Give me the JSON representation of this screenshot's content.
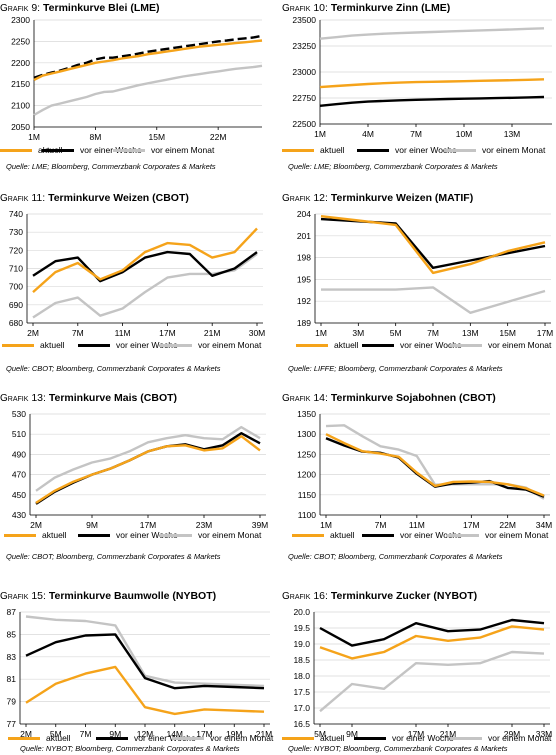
{
  "colors": {
    "aktuell": "#F5A31A",
    "vor_einer_woche": "#000000",
    "vor_einem_monat": "#C4C4C4",
    "grid": "#D9D9D9"
  },
  "legend_labels": [
    "aktuell",
    "vor einer Woche",
    "vor einem Monat"
  ],
  "chart_data": [
    {
      "type": "line",
      "label": "Grafik",
      "number": "9:",
      "title": "Terminkurve Blei (LME)",
      "ylim": [
        2050,
        2300
      ],
      "yticks": [
        "2300",
        "2250",
        "2200",
        "2150",
        "2100",
        "2050"
      ],
      "xticks": [
        "1M",
        "8M",
        "15M",
        "22M"
      ],
      "x": [
        1,
        2,
        3,
        4,
        5,
        6,
        7,
        8,
        9,
        10,
        11,
        12,
        13,
        14,
        15,
        16,
        17,
        18,
        19,
        20,
        21,
        22,
        23,
        24,
        25,
        26,
        27
      ],
      "xlim": [
        1,
        27
      ],
      "tick_x": [
        1,
        8,
        15,
        22
      ],
      "series": [
        {
          "name": "aktuell",
          "key": "aktuell",
          "values": [
            2160,
            2170,
            2175,
            2180,
            2185,
            2190,
            2195,
            2200,
            2203,
            2206,
            2210,
            2213,
            2216,
            2220,
            2223,
            2226,
            2229,
            2232,
            2235,
            2238,
            2240,
            2242,
            2244,
            2246,
            2248,
            2250,
            2252
          ]
        },
        {
          "name": "vor einer Woche",
          "key": "vor_einer_woche",
          "dashed": true,
          "values": [
            2165,
            2172,
            2177,
            2182,
            2188,
            2195,
            2200,
            2208,
            2212,
            2212,
            2215,
            2218,
            2222,
            2226,
            2229,
            2232,
            2235,
            2238,
            2241,
            2244,
            2247,
            2250,
            2252,
            2255,
            2257,
            2259,
            2263
          ]
        },
        {
          "name": "vor einem Monat",
          "key": "vor_einem_monat",
          "values": [
            2078,
            2090,
            2100,
            2105,
            2110,
            2115,
            2120,
            2127,
            2132,
            2133,
            2138,
            2143,
            2148,
            2152,
            2156,
            2160,
            2164,
            2168,
            2171,
            2174,
            2177,
            2180,
            2183,
            2186,
            2188,
            2190,
            2193
          ]
        }
      ],
      "source": "Quelle: LME; Bloomberg, Commerzbank Corporates & Markets"
    },
    {
      "type": "line",
      "label": "Grafik",
      "number": "10:",
      "title": "Terminkurve Zinn (LME)",
      "ylim": [
        22500,
        23500
      ],
      "yticks": [
        "23500",
        "23250",
        "23000",
        "22750",
        "22500"
      ],
      "xticks": [
        "1M",
        "4M",
        "7M",
        "10M",
        "13M"
      ],
      "x": [
        1,
        2,
        3,
        4,
        5,
        6,
        7,
        8,
        9,
        10,
        11,
        12,
        13,
        14,
        15
      ],
      "xlim": [
        1,
        15.5
      ],
      "tick_x": [
        1,
        4,
        7,
        10,
        13
      ],
      "series": [
        {
          "name": "aktuell",
          "key": "aktuell",
          "values": [
            22855,
            22865,
            22875,
            22885,
            22892,
            22898,
            22903,
            22906,
            22909,
            22912,
            22915,
            22918,
            22921,
            22925,
            22930
          ]
        },
        {
          "name": "vor einer Woche",
          "key": "vor_einer_woche",
          "values": [
            22675,
            22690,
            22705,
            22715,
            22722,
            22728,
            22733,
            22737,
            22740,
            22743,
            22746,
            22749,
            22752,
            22756,
            22760
          ]
        },
        {
          "name": "vor einem Monat",
          "key": "vor_einem_monat",
          "values": [
            23320,
            23335,
            23350,
            23360,
            23368,
            23374,
            23380,
            23385,
            23390,
            23395,
            23400,
            23405,
            23410,
            23415,
            23420
          ]
        }
      ],
      "source": "Quelle: LME; Bloomberg, Commerzbank Corporates & Markets"
    },
    {
      "type": "line",
      "label": "Grafik",
      "number": "11:",
      "title": "Terminkurve Weizen (CBOT)",
      "ylim": [
        680,
        740
      ],
      "yticks": [
        "740",
        "730",
        "720",
        "710",
        "700",
        "690",
        "680"
      ],
      "xticks": [
        "2M",
        "7M",
        "11M",
        "17M",
        "21M",
        "30M"
      ],
      "x": [
        2,
        4,
        7,
        9,
        11,
        13,
        17,
        19,
        21,
        23,
        30
      ],
      "xcat": true,
      "tick_idx": [
        0,
        2,
        4,
        6,
        8,
        10
      ],
      "series": [
        {
          "name": "aktuell",
          "key": "aktuell",
          "values": [
            697,
            708,
            713,
            704,
            709,
            719,
            724,
            723,
            716,
            719,
            732
          ]
        },
        {
          "name": "vor einer Woche",
          "key": "vor_einer_woche",
          "values": [
            706,
            714,
            716,
            703,
            708,
            716,
            719,
            718,
            706,
            710,
            719
          ]
        },
        {
          "name": "vor einem Monat",
          "key": "vor_einem_monat",
          "values": [
            683,
            691,
            694,
            684,
            688,
            697,
            705,
            707,
            707,
            709,
            718
          ]
        }
      ],
      "source": "Quelle: CBOT; Bloomberg, Commerzbank Corporates & Markets"
    },
    {
      "type": "line",
      "label": "Grafik",
      "number": "12:",
      "title": "Terminkurve Weizen (MATIF)",
      "ylim": [
        189,
        204
      ],
      "yticks": [
        "204",
        "201",
        "198",
        "195",
        "192",
        "189"
      ],
      "xticks": [
        "1M",
        "3M",
        "5M",
        "7M",
        "13M",
        "15M",
        "17M"
      ],
      "x": [
        1,
        3,
        5,
        7,
        13,
        15,
        17
      ],
      "xcat": true,
      "tick_idx": [
        0,
        1,
        2,
        3,
        4,
        5,
        6
      ],
      "series": [
        {
          "name": "aktuell",
          "key": "aktuell",
          "values": [
            203.7,
            203.1,
            202.5,
            195.9,
            197.1,
            198.9,
            200.1
          ]
        },
        {
          "name": "vor einer Woche",
          "key": "vor_einer_woche",
          "values": [
            203.3,
            203.0,
            202.7,
            196.6,
            197.6,
            198.6,
            199.6
          ]
        },
        {
          "name": "vor einem Monat",
          "key": "vor_einem_monat",
          "values": [
            193.6,
            193.6,
            193.6,
            193.9,
            190.4,
            191.9,
            193.4
          ]
        }
      ],
      "source": "Quelle: LIFFE; Bloomberg, Commerzbank Corporates & Markets"
    },
    {
      "type": "line",
      "label": "Grafik",
      "number": "13:",
      "title": "Terminkurve Mais (CBOT)",
      "ylim": [
        430,
        530
      ],
      "yticks": [
        "530",
        "510",
        "490",
        "470",
        "450",
        "430"
      ],
      "xticks": [
        "2M",
        "9M",
        "17M",
        "23M",
        "39M"
      ],
      "x": [
        2,
        4,
        6,
        9,
        11,
        14,
        17,
        19,
        21,
        23,
        25,
        27,
        39
      ],
      "xcat": true,
      "tick_idx": [
        0,
        3,
        6,
        9,
        12
      ],
      "series": [
        {
          "name": "aktuell",
          "key": "aktuell",
          "values": [
            442,
            454,
            463,
            470,
            476,
            484,
            493,
            498,
            499,
            494,
            496,
            508,
            494
          ]
        },
        {
          "name": "vor einer Woche",
          "key": "vor_einer_woche",
          "values": [
            441,
            453,
            462,
            470,
            476,
            484,
            493,
            498,
            500,
            495,
            499,
            511,
            501
          ]
        },
        {
          "name": "vor einem Monat",
          "key": "vor_einem_monat",
          "values": [
            454,
            467,
            475,
            482,
            486,
            493,
            502,
            506,
            509,
            506,
            505,
            517,
            506
          ]
        }
      ],
      "source": "Quelle: CBOT; Bloomberg, Commerzbank Corporates & Markets"
    },
    {
      "type": "line",
      "label": "Grafik",
      "number": "14:",
      "title": "Terminkurve Sojabohnen (CBOT)",
      "ylim": [
        1100,
        1350
      ],
      "yticks": [
        "1350",
        "1300",
        "1250",
        "1200",
        "1150",
        "1100"
      ],
      "xticks": [
        "1M",
        "7M",
        "11M",
        "17M",
        "22M",
        "34M"
      ],
      "x": [
        1,
        3,
        5,
        7,
        9,
        11,
        13,
        15,
        17,
        19,
        22,
        25,
        34
      ],
      "xcat": true,
      "tick_idx": [
        0,
        3,
        5,
        8,
        10,
        12
      ],
      "series": [
        {
          "name": "aktuell",
          "key": "aktuell",
          "values": [
            1300,
            1278,
            1258,
            1252,
            1244,
            1205,
            1172,
            1182,
            1183,
            1182,
            1176,
            1166,
            1148
          ]
        },
        {
          "name": "vor einer Woche",
          "key": "vor_einer_woche",
          "values": [
            1290,
            1272,
            1257,
            1254,
            1242,
            1202,
            1170,
            1178,
            1180,
            1184,
            1167,
            1163,
            1145
          ]
        },
        {
          "name": "vor einem Monat",
          "key": "vor_einem_monat",
          "values": [
            1320,
            1322,
            1295,
            1270,
            1262,
            1246,
            1175,
            1176,
            1176,
            1176,
            1176,
            1168,
            1140
          ]
        }
      ],
      "source": "Quelle: CBOT; Bloomberg, Commerzbank Corporates & Markets"
    },
    {
      "type": "line",
      "label": "Grafik",
      "number": "15:",
      "title": "Terminkurve Baumwolle (NYBOT)",
      "ylim": [
        77,
        87
      ],
      "yticks": [
        "87",
        "85",
        "83",
        "81",
        "79",
        "77"
      ],
      "xticks": [
        "2M",
        "5M",
        "7M",
        "9M",
        "12M",
        "14M",
        "17M",
        "19M",
        "21M"
      ],
      "x": [
        2,
        5,
        7,
        9,
        12,
        14,
        17,
        19,
        21
      ],
      "xcat": true,
      "tick_idx": [
        0,
        1,
        2,
        3,
        4,
        5,
        6,
        7,
        8
      ],
      "series": [
        {
          "name": "aktuell",
          "key": "aktuell",
          "values": [
            78.9,
            80.6,
            81.5,
            82.1,
            78.5,
            77.9,
            78.3,
            78.2,
            78.1
          ]
        },
        {
          "name": "vor einer Woche",
          "key": "vor_einer_woche",
          "values": [
            83.1,
            84.3,
            84.9,
            85.0,
            81.1,
            80.2,
            80.4,
            80.3,
            80.2
          ]
        },
        {
          "name": "vor einem Monat",
          "key": "vor_einem_monat",
          "values": [
            86.6,
            86.3,
            86.2,
            85.8,
            81.3,
            80.7,
            80.6,
            80.5,
            80.4
          ]
        }
      ],
      "source": "Quelle: NYBOT; Bloomberg, Commerzbank Corporates & Markets"
    },
    {
      "type": "line",
      "label": "Grafik",
      "number": "16:",
      "title": "Terminkurve Zucker (NYBOT)",
      "ylim": [
        16.5,
        20.0
      ],
      "yticks": [
        "20.0",
        "19.5",
        "19.0",
        "18.5",
        "18.0",
        "17.5",
        "17.0",
        "16.5"
      ],
      "xticks": [
        "5M",
        "9M",
        "17M",
        "21M",
        "29M",
        "33M"
      ],
      "x": [
        5,
        9,
        13,
        17,
        21,
        25,
        29,
        33
      ],
      "xcat": true,
      "tick_idx": [
        0,
        1,
        3,
        4,
        6,
        7
      ],
      "series": [
        {
          "name": "aktuell",
          "key": "aktuell",
          "values": [
            18.9,
            18.55,
            18.75,
            19.25,
            19.1,
            19.2,
            19.55,
            19.45
          ]
        },
        {
          "name": "vor einer Woche",
          "key": "vor_einer_woche",
          "values": [
            19.5,
            18.95,
            19.15,
            19.65,
            19.4,
            19.45,
            19.75,
            19.65
          ]
        },
        {
          "name": "vor einem Monat",
          "key": "vor_einem_monat",
          "values": [
            16.9,
            17.75,
            17.6,
            18.4,
            18.35,
            18.4,
            18.75,
            18.7
          ]
        }
      ],
      "source": "Quelle: NYBOT; Bloomberg, Commerzbank Corporates & Markets"
    }
  ]
}
